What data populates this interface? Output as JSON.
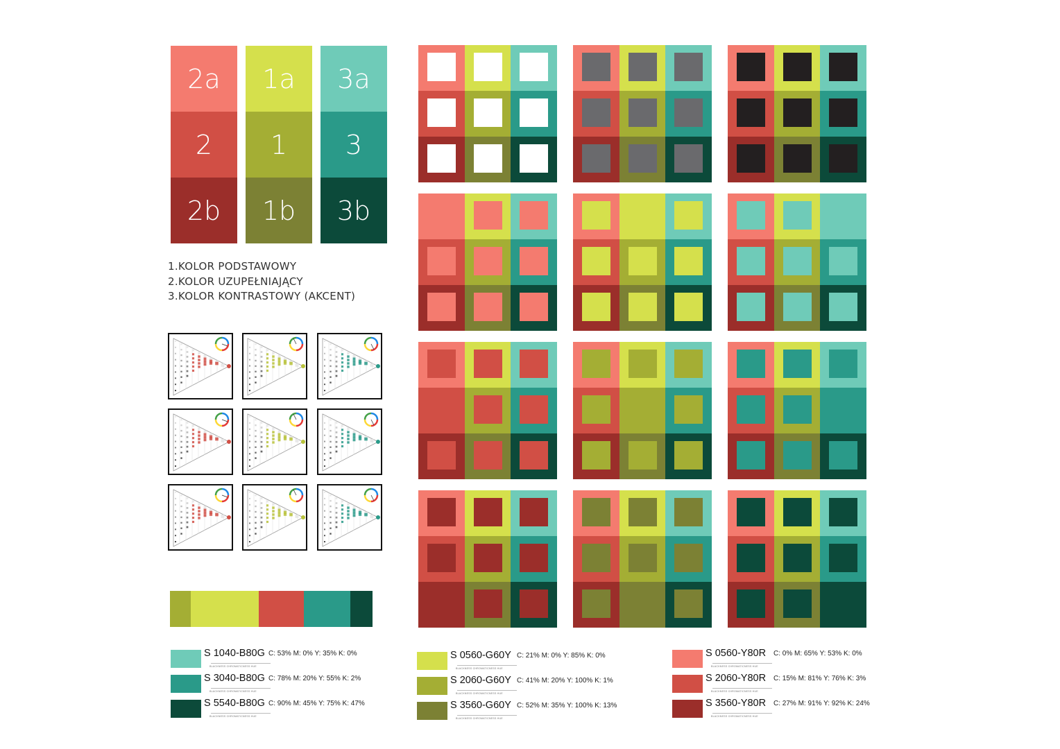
{
  "key_palette": {
    "columns": [
      {
        "cells": [
          {
            "label": "2a",
            "color": "#F47B6F"
          },
          {
            "label": "2",
            "color": "#D14F45"
          },
          {
            "label": "2b",
            "color": "#9B2E2A"
          }
        ]
      },
      {
        "cells": [
          {
            "label": "1a",
            "color": "#D5E04C"
          },
          {
            "label": "1",
            "color": "#A4AE34"
          },
          {
            "label": "1b",
            "color": "#7C8134"
          }
        ]
      },
      {
        "cells": [
          {
            "label": "3a",
            "color": "#6FCBB8"
          },
          {
            "label": "3",
            "color": "#2A9A89"
          },
          {
            "label": "3b",
            "color": "#0C4A3A"
          }
        ]
      }
    ]
  },
  "legend": [
    "1.KOLOR PODSTAWOWY",
    "2.KOLOR UZUPEŁNIAJĄCY",
    "3.KOLOR KONTRASTOWY (AKCENT)"
  ],
  "colors": {
    "red_light": "#F47B6F",
    "red": "#D14F45",
    "red_dark": "#9B2E2A",
    "yellow_light": "#D5E04C",
    "yellow": "#A4AE34",
    "yellow_dark": "#7C8134",
    "teal_light": "#6FCBB8",
    "teal": "#2A9A89",
    "teal_dark": "#0C4A3A",
    "white": "#FFFFFF",
    "grey": "#6A6A6D",
    "black": "#231F20"
  },
  "nsmc_thumbnails": {
    "hue_labels": [
      "Y80R",
      "G60Y",
      "B80G"
    ],
    "accent_colors": [
      "#D14F45",
      "#B8C23A",
      "#2A9A89"
    ]
  },
  "palette_strip": [
    {
      "color": "#A4AE34",
      "weight": 30
    },
    {
      "color": "#D5E04C",
      "weight": 98
    },
    {
      "color": "#D14F45",
      "weight": 65
    },
    {
      "color": "#2A9A89",
      "weight": 67
    },
    {
      "color": "#0C4A3A",
      "weight": 32
    }
  ],
  "swatches": [
    {
      "group": "teal",
      "items": [
        {
          "color": "#6FCBB8",
          "code": "S 1040-B80G",
          "cmyk": "C: 53% M: 0% Y: 35% K: 0%"
        },
        {
          "color": "#2A9A89",
          "code": "S 3040-B80G",
          "cmyk": "C: 78% M: 20% Y: 55% K: 2%"
        },
        {
          "color": "#0C4A3A",
          "code": "S 5540-B80G",
          "cmyk": "C: 90% M: 45% Y: 75% K: 47%"
        }
      ]
    },
    {
      "group": "yellow",
      "items": [
        {
          "color": "#D5E04C",
          "code": "S 0560-G60Y",
          "cmyk": "C: 21% M: 0% Y: 85% K: 0%"
        },
        {
          "color": "#A4AE34",
          "code": "S 2060-G60Y",
          "cmyk": "C: 41% M: 20% Y: 100% K: 1%"
        },
        {
          "color": "#7C8134",
          "code": "S 3560-G60Y",
          "cmyk": "C: 52% M: 35% Y: 100% K: 13%"
        }
      ]
    },
    {
      "group": "red",
      "items": [
        {
          "color": "#F47B6F",
          "code": "S 0560-Y80R",
          "cmyk": "C: 0% M: 65% Y: 53% K: 0%"
        },
        {
          "color": "#D14F45",
          "code": "S 2060-Y80R",
          "cmyk": "C: 15% M: 81% Y: 76% K: 3%"
        },
        {
          "color": "#9B2E2A",
          "code": "S 3560-Y80R",
          "cmyk": "C: 27% M: 91% Y: 92% K: 24%"
        }
      ]
    }
  ],
  "swatch_sublabels": "BLACKNESS CHROMATICNESS HUE",
  "grids": [
    {
      "inner": "white"
    },
    {
      "inner": "grey"
    },
    {
      "inner": "black"
    },
    {
      "inner": "red_light"
    },
    {
      "inner": "yellow_light"
    },
    {
      "inner": "teal_light"
    },
    {
      "inner": "red"
    },
    {
      "inner": "yellow"
    },
    {
      "inner": "teal"
    },
    {
      "inner": "red_dark"
    },
    {
      "inner": "yellow_dark"
    },
    {
      "inner": "teal_dark"
    }
  ]
}
